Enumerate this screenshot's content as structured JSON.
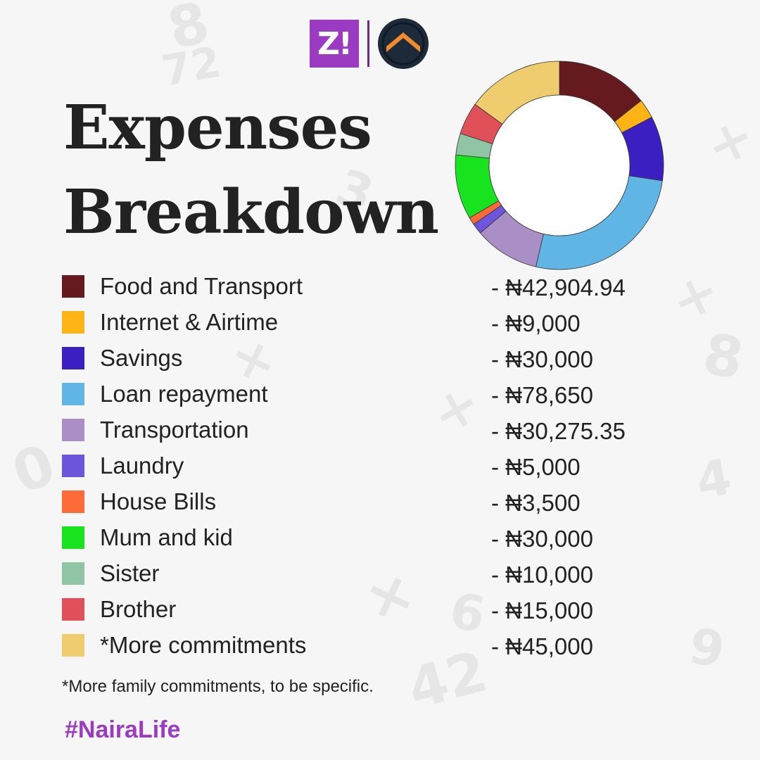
{
  "logos": {
    "zikoko_text": "Z!",
    "partner_icon": "roof-chevron-icon"
  },
  "title_line1": "Expenses",
  "title_line2": "Breakdown",
  "chart_data": {
    "type": "pie",
    "categories": [
      "Food and Transport",
      "Internet & Airtime",
      "Savings",
      "Loan repayment",
      "Transportation",
      "Laundry",
      "House Bills",
      "Mum and kid",
      "Sister",
      "Brother",
      "*More commitments"
    ],
    "values": [
      42904.94,
      9000,
      30000,
      78650,
      30275.35,
      5000,
      3500,
      30000,
      10000,
      15000,
      45000
    ],
    "value_labels": [
      "- ₦42,904.94",
      "- ₦9,000",
      "- ₦30,000",
      "- ₦78,650",
      "- ₦30,275.35",
      "- ₦5,000",
      "- ₦3,500",
      "- ₦30,000",
      "- ₦10,000",
      "- ₦15,000",
      "- ₦45,000"
    ],
    "colors": [
      "#651a1d",
      "#fdb414",
      "#3b1fc1",
      "#5fb6e4",
      "#aa8fc7",
      "#6d56dc",
      "#ff6a39",
      "#18e31f",
      "#8fc4a5",
      "#e05058",
      "#efcc6e"
    ],
    "donut": true,
    "legend_position": "below-left"
  },
  "footnote": "*More family commitments, to be specific.",
  "hashtag": "#NairaLife"
}
